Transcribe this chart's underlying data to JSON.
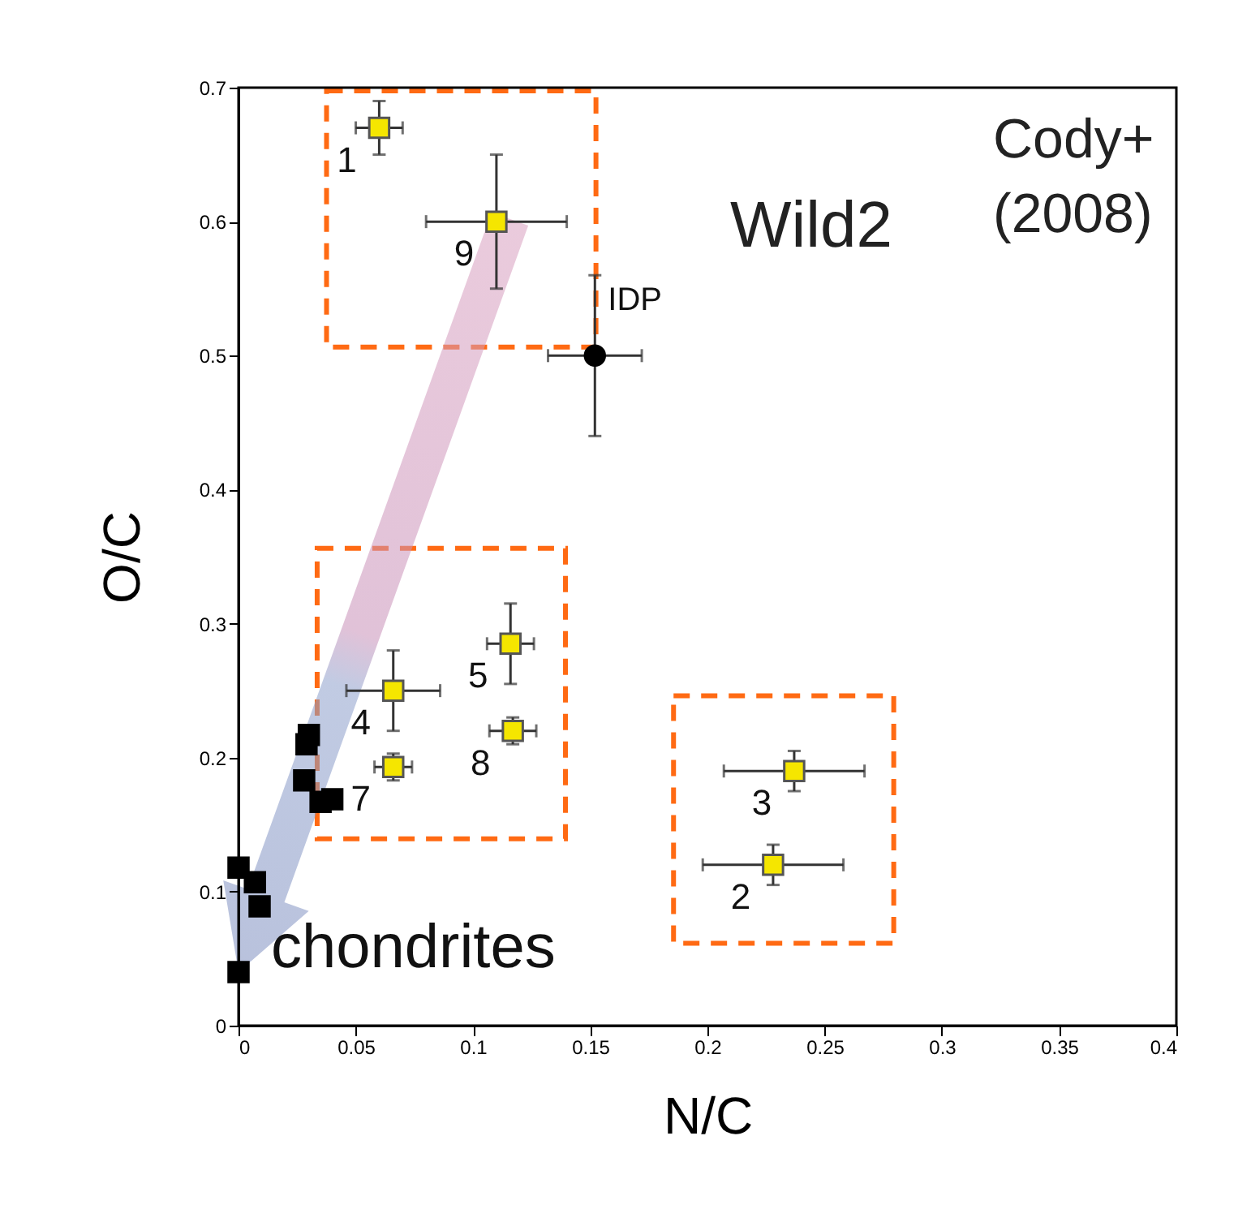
{
  "chart_data": {
    "type": "scatter",
    "xlabel": "N/C",
    "ylabel": "O/C",
    "xlim": [
      0,
      0.4
    ],
    "ylim": [
      0,
      0.7
    ],
    "xticks": [
      0,
      0.05,
      0.1,
      0.15,
      0.2,
      0.25,
      0.3,
      0.35,
      0.4
    ],
    "yticks": [
      0,
      0.1,
      0.2,
      0.3,
      0.4,
      0.5,
      0.6,
      0.7
    ],
    "annotations": [
      "Wild2",
      "Cody+\n(2008)",
      {
        "text": "1",
        "x": 0.06,
        "y": 0.67
      },
      {
        "text": "9",
        "x": 0.11,
        "y": 0.6
      },
      {
        "text": "4",
        "x": 0.066,
        "y": 0.25
      },
      {
        "text": "5",
        "x": 0.116,
        "y": 0.285
      },
      {
        "text": "7",
        "x": 0.066,
        "y": 0.193
      },
      {
        "text": "8",
        "x": 0.117,
        "y": 0.22
      },
      {
        "text": "2",
        "x": 0.228,
        "y": 0.12
      },
      {
        "text": "3",
        "x": 0.237,
        "y": 0.19
      }
    ],
    "series": [
      {
        "color": "#f5e600",
        "marker": "square",
        "x": [
          0.06,
          0.11
        ],
        "values": [
          0.67,
          0.6
        ],
        "errors": [
          0.02,
          0.05
        ],
        "xerrors": [
          0.01,
          0.03
        ]
      },
      {
        "color": "#f5e600",
        "marker": "square",
        "x": [
          0.066,
          0.116,
          0.066,
          0.117
        ],
        "values": [
          0.25,
          0.285,
          0.193,
          0.22
        ],
        "errors": [
          0.03,
          0.03,
          0.01,
          0.01
        ],
        "xerrors": [
          0.02,
          0.01,
          0.008,
          0.01
        ]
      },
      {
        "color": "#f5e600",
        "marker": "square",
        "x": [
          0.228,
          0.237
        ],
        "values": [
          0.12,
          0.19
        ],
        "errors": [
          0.015,
          0.015
        ],
        "xerrors": [
          0.03,
          0.03
        ]
      },
      {
        "name": "IDP",
        "color": "#000000",
        "marker": "circle",
        "x": [
          0.152
        ],
        "values": [
          0.5
        ],
        "errors": [
          0.06
        ],
        "xerrors": [
          0.02
        ]
      },
      {
        "name": "chondrites",
        "color": "#000000",
        "marker": "square",
        "x": [
          0,
          0.007,
          0.009,
          0,
          0.03,
          0.029,
          0.028,
          0.035,
          0.04
        ],
        "values": [
          0.118,
          0.107,
          0.089,
          0.04,
          0.217,
          0.21,
          0.183,
          0.167,
          0.169
        ]
      }
    ]
  }
}
